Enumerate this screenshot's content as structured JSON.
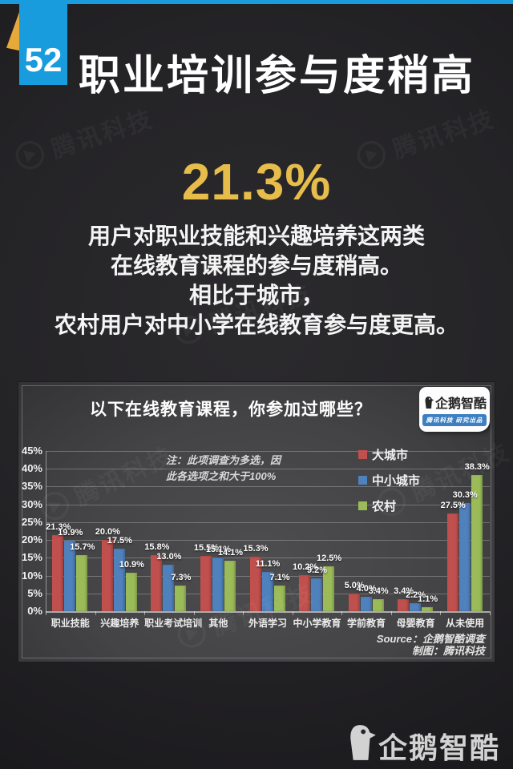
{
  "page": {
    "page_number": "52",
    "title": "职业培训参与度稍高",
    "highlight_stat": "21.3%",
    "body_lines": [
      "用户对职业技能和兴趣培养这两类",
      "在线教育课程的参与度稍高。",
      "相比于城市，",
      "农村用户对中小学在线教育参与度更高。"
    ],
    "watermark_text": "腾讯科技",
    "footer_logo_text": "企鹅智酷"
  },
  "chart": {
    "title": "以下在线教育课程，你参加过哪些？",
    "badge": {
      "brand": "企鹅智酷",
      "tagline": "腾讯科技  研究出品"
    },
    "note_lines": [
      "注：此项调查为多选，因",
      "此各选项之和大于100%"
    ],
    "source_lines": [
      "Source：企鹅智酷调查",
      "制图：腾讯科技"
    ]
  },
  "chart_data": {
    "type": "bar",
    "title": "以下在线教育课程，你参加过哪些？",
    "categories": [
      "职业技能",
      "兴趣培养",
      "职业考试培训",
      "其他",
      "外语学习",
      "中小学教育",
      "学前教育",
      "母婴教育",
      "从未使用"
    ],
    "series": [
      {
        "name": "大城市",
        "color": "#c0504d",
        "values": [
          21.3,
          20.0,
          15.8,
          15.5,
          15.3,
          10.2,
          5.0,
          3.4,
          27.5
        ]
      },
      {
        "name": "中小城市",
        "color": "#4f81bd",
        "values": [
          19.9,
          17.5,
          13.0,
          15.1,
          11.1,
          9.2,
          4.0,
          2.2,
          30.3
        ]
      },
      {
        "name": "农村",
        "color": "#9bbb59",
        "values": [
          15.7,
          10.9,
          7.3,
          14.1,
          7.1,
          12.5,
          3.4,
          1.1,
          38.3
        ]
      }
    ],
    "ylim": [
      0,
      45
    ],
    "ytick_step": 5,
    "ytick_suffix": "%",
    "grid": true,
    "legend_position": "inside-top-right",
    "note": "注：此项调查为多选，因此各选项之和大于100%",
    "source": "Source：企鹅智酷调查 制图：腾讯科技"
  },
  "colors": {
    "accent_blue": "#189cde",
    "accent_yellow": "#e8a93b",
    "stat_yellow": "#e6bc4a",
    "series_red": "#c0504d",
    "series_blue": "#4f81bd",
    "series_green": "#9bbb59",
    "panel_bg": "#444446",
    "page_bg": "#242326"
  }
}
